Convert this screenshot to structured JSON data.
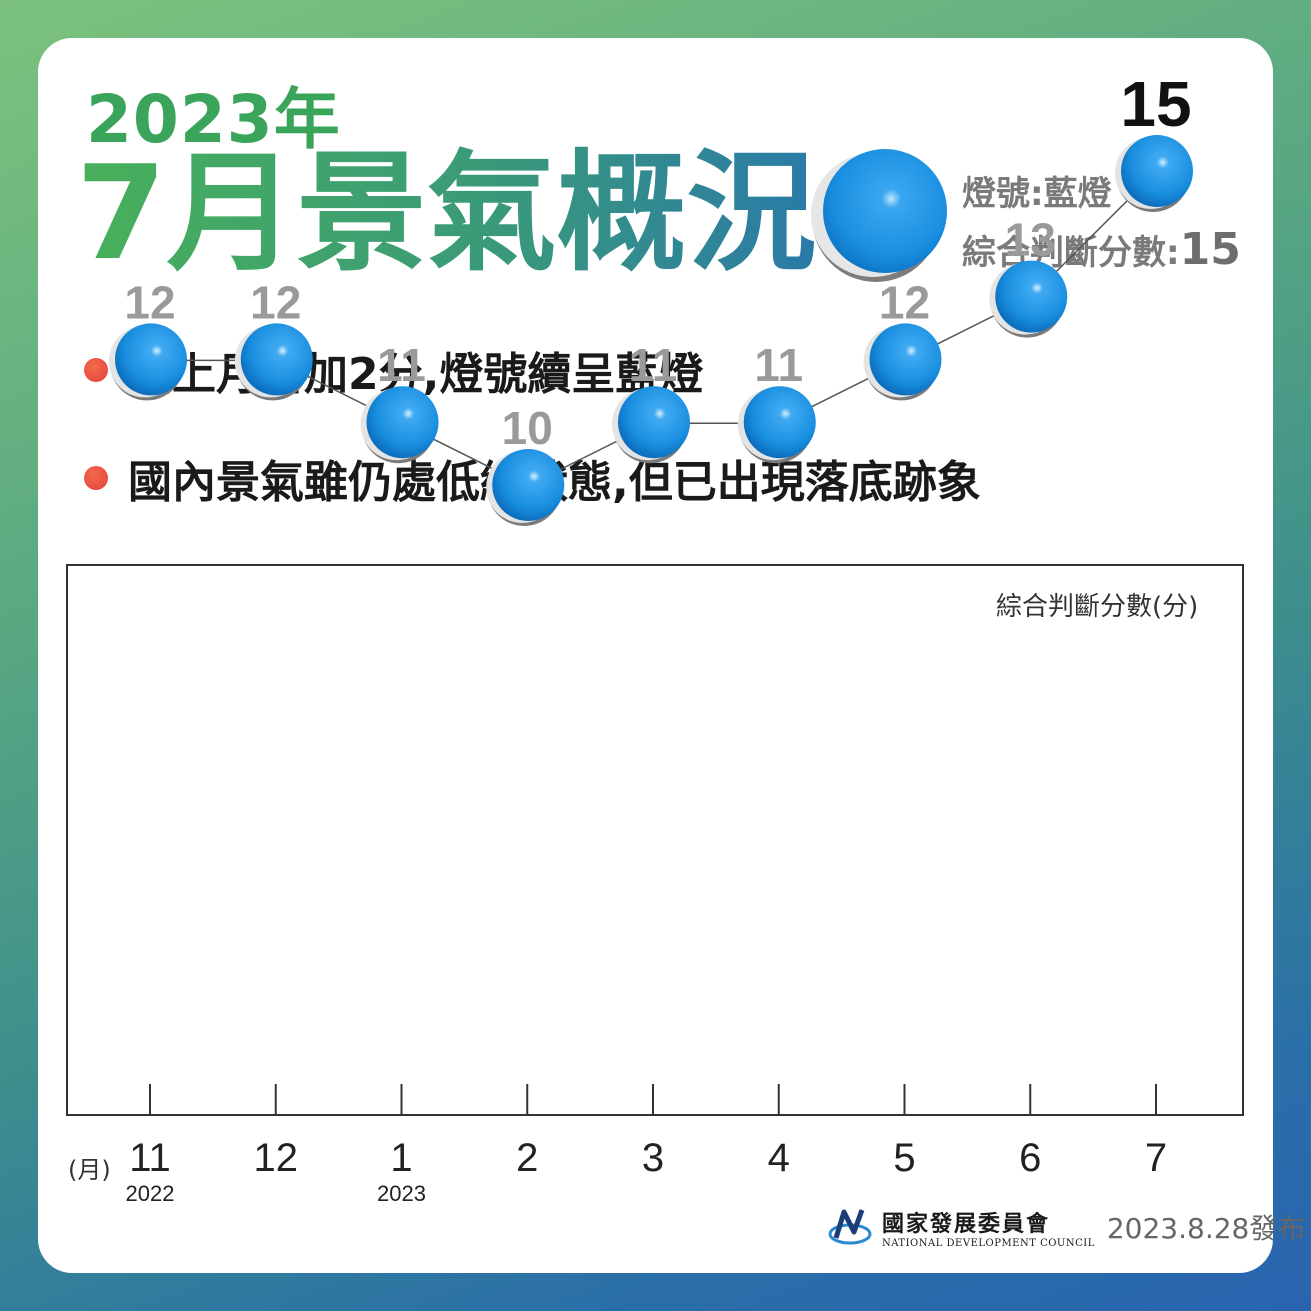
{
  "header": {
    "year": "2023年",
    "headline": "7月景氣概況",
    "signal_line": "燈號:藍燈",
    "score_label": "綜合判斷分數:",
    "score_value": "15"
  },
  "bullets": [
    "較上月增加2分,燈號續呈藍燈",
    "國內景氣雖仍處低緩狀態,但已出現落底跡象"
  ],
  "chart_data": {
    "type": "line",
    "ylabel": "綜合判斷分數(分)",
    "xlabel": "(月)",
    "categories": [
      "11",
      "12",
      "1",
      "2",
      "3",
      "4",
      "5",
      "6",
      "7"
    ],
    "year_labels": [
      "2022",
      "",
      "2023",
      "",
      "",
      "",
      "",
      "",
      ""
    ],
    "values": [
      12,
      12,
      11,
      10,
      11,
      11,
      12,
      13,
      15
    ],
    "signal": "藍燈",
    "marker_color": "#1a8fe0"
  },
  "footer": {
    "org_zh": "國家發展委員會",
    "org_en": "National Development Council",
    "release": "2023.8.28發布"
  }
}
